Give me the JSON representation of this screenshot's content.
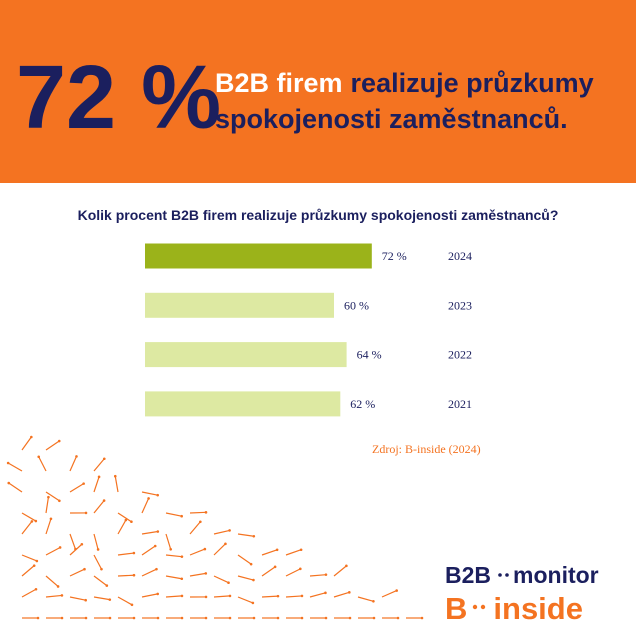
{
  "header": {
    "big_number": "72 %",
    "headline_highlight": "B2B firem",
    "headline_line1": "realizuje průzkumy",
    "headline_line2": "spokojenosti zaměstnanců."
  },
  "chart_data": {
    "type": "bar",
    "orientation": "horizontal",
    "title": "Kolik procent B2B firem realizuje průzkumy spokojenosti zaměstnanců?",
    "categories": [
      "2024",
      "2023",
      "2022",
      "2021"
    ],
    "values": [
      72,
      60,
      64,
      62
    ],
    "value_labels": [
      "72 %",
      "60 %",
      "64 %",
      "62 %"
    ],
    "colors": [
      "#9bb31a",
      "#dde9a2",
      "#dde9a2",
      "#dde9a2"
    ],
    "xlim": [
      0,
      100
    ],
    "source": "Zdroj: B-inside (2024)"
  },
  "logos": {
    "monitor_a": "B2B",
    "monitor_b": "monitor",
    "inside_a": "B",
    "inside_b": "inside"
  }
}
